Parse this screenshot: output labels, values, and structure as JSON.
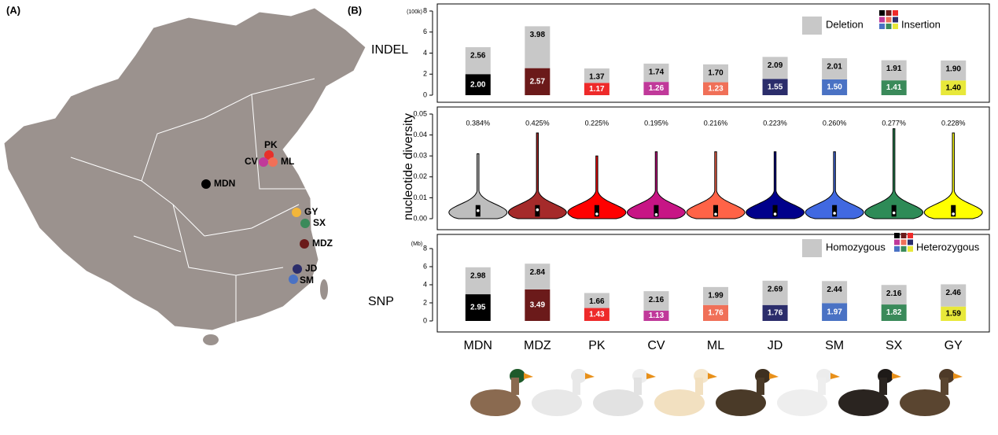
{
  "panel_labels": [
    "(A)",
    "(B)"
  ],
  "map": {
    "points": [
      {
        "label": "MDN",
        "color": "#000000"
      },
      {
        "label": "PK",
        "color": "#e8302a"
      },
      {
        "label": "CV",
        "color": "#c0399a"
      },
      {
        "label": "ML",
        "color": "#f07058"
      },
      {
        "label": "GY",
        "color": "#f2b63a"
      },
      {
        "label": "SX",
        "color": "#3a8a5a"
      },
      {
        "label": "MDZ",
        "color": "#6b1a1a"
      },
      {
        "label": "JD",
        "color": "#2b2d6b"
      },
      {
        "label": "SM",
        "color": "#4a72c4"
      }
    ]
  },
  "chart_data": [
    {
      "type": "stacked-bar",
      "ylabel": "INDEL",
      "unit": "(100k)",
      "ylim": [
        0,
        8
      ],
      "yticks": [
        0,
        2,
        4,
        6,
        8
      ],
      "series": [
        {
          "name": "Insertion",
          "color": [
            "#000000",
            "#6b1a1a",
            "#ee2a2a",
            "#c0399a",
            "#f07058",
            "#2b2d6b",
            "#4a72c4",
            "#3a8a5a",
            "#e8e83a"
          ],
          "values": [
            2.0,
            2.57,
            1.17,
            1.26,
            1.23,
            1.55,
            1.5,
            1.41,
            1.4
          ],
          "value_labels": [
            "2.00",
            "2.57",
            "1.17",
            "1.26",
            "1.23",
            "1.55",
            "1.50",
            "1.41",
            "1.40"
          ]
        },
        {
          "name": "Deletion",
          "color": "#c8c8c8",
          "values": [
            2.56,
            3.98,
            1.37,
            1.74,
            1.7,
            2.09,
            2.01,
            1.91,
            1.9
          ],
          "value_labels": [
            "2.56",
            "3.98",
            "1.37",
            "1.74",
            "1.70",
            "2.09",
            "2.01",
            "1.91",
            "1.90"
          ]
        }
      ]
    },
    {
      "type": "violin",
      "ylabel": "nucleotide diversity",
      "ylim": [
        0,
        0.05
      ],
      "yticks": [
        {
          "value": 0,
          "label": "0.00"
        },
        0.01,
        0.02,
        0.03,
        0.04,
        0.05
      ],
      "color": [
        "#bdbdbd",
        "#a52a2a",
        "#ff0000",
        "#c71585",
        "#ff6347",
        "#00008b",
        "#4169e1",
        "#2e8b57",
        "#ffff00"
      ],
      "max": [
        0.031,
        0.041,
        0.03,
        0.032,
        0.032,
        0.032,
        0.032,
        0.043,
        0.041
      ],
      "values": [
        0.00384,
        0.00425,
        0.00225,
        0.00195,
        0.00216,
        0.00223,
        0.0026,
        0.00277,
        0.00228
      ],
      "value_labels": [
        "0.384%",
        "0.425%",
        "0.225%",
        "0.195%",
        "0.216%",
        "0.223%",
        "0.260%",
        "0.277%",
        "0.228%"
      ]
    },
    {
      "type": "stacked-bar",
      "ylabel": "SNP",
      "unit": "(Mb)",
      "ylim": [
        0,
        8
      ],
      "yticks": [
        0,
        2,
        4,
        6,
        8
      ],
      "categories": [
        "MDN",
        "MDZ",
        "PK",
        "CV",
        "ML",
        "JD",
        "SM",
        "SX",
        "GY"
      ],
      "series": [
        {
          "name": "Heterozygous",
          "color": [
            "#000000",
            "#6b1a1a",
            "#ee2a2a",
            "#c0399a",
            "#f07058",
            "#2b2d6b",
            "#4a72c4",
            "#3a8a5a",
            "#e8e83a"
          ],
          "values": [
            2.95,
            3.49,
            1.43,
            1.13,
            1.76,
            1.76,
            1.97,
            1.82,
            1.59
          ],
          "value_labels": [
            "2.95",
            "3.49",
            "1.43",
            "1.13",
            "1.76",
            "1.76",
            "1.97",
            "1.82",
            "1.59"
          ]
        },
        {
          "name": "Homozygous",
          "color": "#c8c8c8",
          "values": [
            2.98,
            2.84,
            1.66,
            2.16,
            1.99,
            2.69,
            2.44,
            2.16,
            2.46
          ],
          "value_labels": [
            "2.98",
            "2.84",
            "1.66",
            "2.16",
            "1.99",
            "2.69",
            "2.44",
            "2.16",
            "2.46"
          ]
        }
      ]
    }
  ]
}
